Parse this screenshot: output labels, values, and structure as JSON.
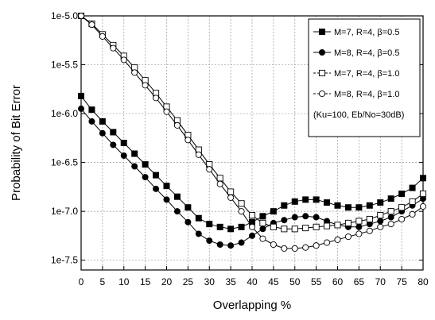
{
  "chart_data": {
    "type": "line",
    "xlabel": "Overlapping %",
    "ylabel": "Probability of Bit Error",
    "xlim": [
      0,
      80
    ],
    "ylim": [
      -7.6,
      -5.0
    ],
    "x_ticks": [
      0,
      5,
      10,
      15,
      20,
      25,
      30,
      35,
      40,
      45,
      50,
      55,
      60,
      65,
      70,
      75,
      80
    ],
    "x_tick_labels": [
      "0",
      "5",
      "10",
      "15",
      "20",
      "25",
      "30",
      "35",
      "40",
      "45",
      "50",
      "55",
      "60",
      "65",
      "70",
      "75",
      "80"
    ],
    "y_ticks": [
      -5.0,
      -5.5,
      -6.0,
      -6.5,
      -7.0,
      -7.5
    ],
    "y_tick_labels": [
      "1e-5.0",
      "1e-5.5",
      "1e-6.0",
      "1e-6.5",
      "1e-7.0",
      "1e-7.5"
    ],
    "grid": true,
    "legend_position": "top-right",
    "annotation": "(Ku=100, Eb/No=30dB)",
    "x": [
      0,
      2.5,
      5,
      7.5,
      10,
      12.5,
      15,
      17.5,
      20,
      22.5,
      25,
      27.5,
      30,
      32.5,
      35,
      37.5,
      40,
      42.5,
      45,
      47.5,
      50,
      52.5,
      55,
      57.5,
      60,
      62.5,
      65,
      67.5,
      70,
      72.5,
      75,
      77.5,
      80
    ],
    "series": [
      {
        "name": "M=7, R=4, β=0.5",
        "marker": "filled-square",
        "values": [
          -5.82,
          -5.96,
          -6.08,
          -6.19,
          -6.3,
          -6.41,
          -6.52,
          -6.63,
          -6.74,
          -6.85,
          -6.96,
          -7.07,
          -7.13,
          -7.16,
          -7.18,
          -7.16,
          -7.11,
          -7.05,
          -7.0,
          -6.94,
          -6.9,
          -6.88,
          -6.88,
          -6.91,
          -6.94,
          -6.96,
          -6.96,
          -6.94,
          -6.91,
          -6.87,
          -6.82,
          -6.76,
          -6.66
        ]
      },
      {
        "name": "M=8, R=4, β=0.5",
        "marker": "filled-circle",
        "values": [
          -5.95,
          -6.08,
          -6.2,
          -6.32,
          -6.43,
          -6.54,
          -6.65,
          -6.77,
          -6.88,
          -7.0,
          -7.11,
          -7.23,
          -7.3,
          -7.34,
          -7.35,
          -7.32,
          -7.25,
          -7.18,
          -7.12,
          -7.09,
          -7.06,
          -7.05,
          -7.06,
          -7.1,
          -7.14,
          -7.16,
          -7.16,
          -7.13,
          -7.1,
          -7.06,
          -7.0,
          -6.94,
          -6.87
        ]
      },
      {
        "name": "M=7, R=4, β=1.0",
        "marker": "open-square",
        "values": [
          -5.0,
          -5.08,
          -5.19,
          -5.3,
          -5.41,
          -5.53,
          -5.66,
          -5.79,
          -5.93,
          -6.07,
          -6.22,
          -6.37,
          -6.52,
          -6.66,
          -6.8,
          -6.92,
          -7.04,
          -7.12,
          -7.16,
          -7.18,
          -7.18,
          -7.17,
          -7.16,
          -7.15,
          -7.14,
          -7.12,
          -7.1,
          -7.08,
          -7.04,
          -7.0,
          -6.96,
          -6.9,
          -6.82
        ]
      },
      {
        "name": "M=8, R=4, β=1.0",
        "marker": "open-circle",
        "values": [
          -5.0,
          -5.09,
          -5.21,
          -5.33,
          -5.45,
          -5.58,
          -5.71,
          -5.84,
          -5.98,
          -6.12,
          -6.27,
          -6.42,
          -6.57,
          -6.72,
          -6.86,
          -7.0,
          -7.16,
          -7.28,
          -7.34,
          -7.38,
          -7.38,
          -7.37,
          -7.35,
          -7.32,
          -7.29,
          -7.26,
          -7.23,
          -7.2,
          -7.16,
          -7.13,
          -7.08,
          -7.03,
          -6.95
        ]
      }
    ]
  }
}
